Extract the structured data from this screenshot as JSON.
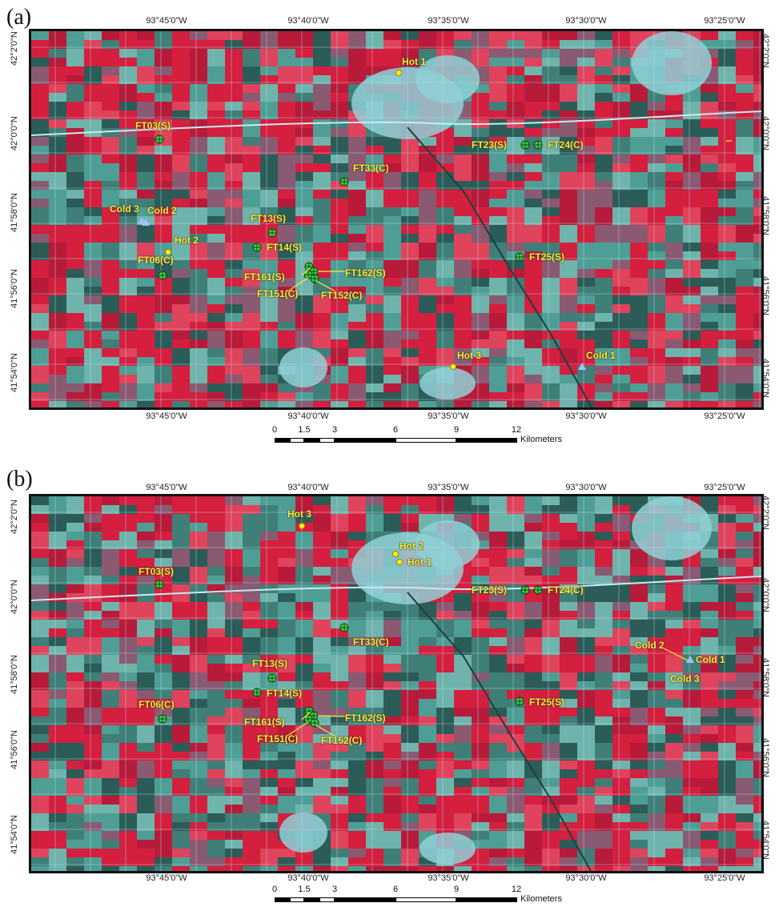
{
  "panels": [
    {
      "id": "a",
      "letter": "(a)",
      "lon_labels": [
        "93°45'0\"W",
        "93°40'0\"W",
        "93°35'0\"W",
        "93°30'0\"W",
        "93°25'0\"W"
      ],
      "lat_labels": [
        "42°2'0\"N",
        "42°0'0\"N",
        "41°58'0\"N",
        "41°56'0\"N",
        "41°54'0\"N"
      ],
      "scale": {
        "ticks": [
          "0",
          "1.5",
          "3",
          "6",
          "9",
          "12"
        ],
        "unit": "Kilometers"
      },
      "sites": [
        "FT03(S)",
        "FT06(C)",
        "FT13(S)",
        "FT14(S)",
        "FT161(S)",
        "FT162(S)",
        "FT151(C)",
        "FT152(C)",
        "FT33(C)",
        "FT23(S)",
        "FT24(C)",
        "FT25(S)"
      ],
      "hot_pixels": [
        "Hot 1",
        "Hot 2",
        "Hot 3"
      ],
      "cold_pixels": [
        "Cold 1",
        "Cold 2",
        "Cold 3"
      ]
    },
    {
      "id": "b",
      "letter": "(b)",
      "lon_labels": [
        "93°45'0\"W",
        "93°40'0\"W",
        "93°35'0\"W",
        "93°30'0\"W",
        "93°25'0\"W"
      ],
      "lat_labels": [
        "42°2'0\"N",
        "42°0'0\"N",
        "41°58'0\"N",
        "41°56'0\"N",
        "41°54'0\"N"
      ],
      "scale": {
        "ticks": [
          "0",
          "1.5",
          "3",
          "6",
          "9",
          "12"
        ],
        "unit": "Kilometers"
      },
      "sites": [
        "FT03(S)",
        "FT06(C)",
        "FT13(S)",
        "FT14(S)",
        "FT161(S)",
        "FT162(S)",
        "FT151(C)",
        "FT152(C)",
        "FT33(C)",
        "FT23(S)",
        "FT24(C)",
        "FT25(S)"
      ],
      "hot_pixels": [
        "Hot 1",
        "Hot 2",
        "Hot 3"
      ],
      "cold_pixels": [
        "Cold 1",
        "Cold 2",
        "Cold 3"
      ]
    }
  ],
  "colors": {
    "vegetation": "#d41f3f",
    "soil": "#4f9e96",
    "urban": "#8fd0d6",
    "label": "#ffee33",
    "site_marker": "#3fd24a",
    "cold_marker": "#9fc3ff"
  }
}
